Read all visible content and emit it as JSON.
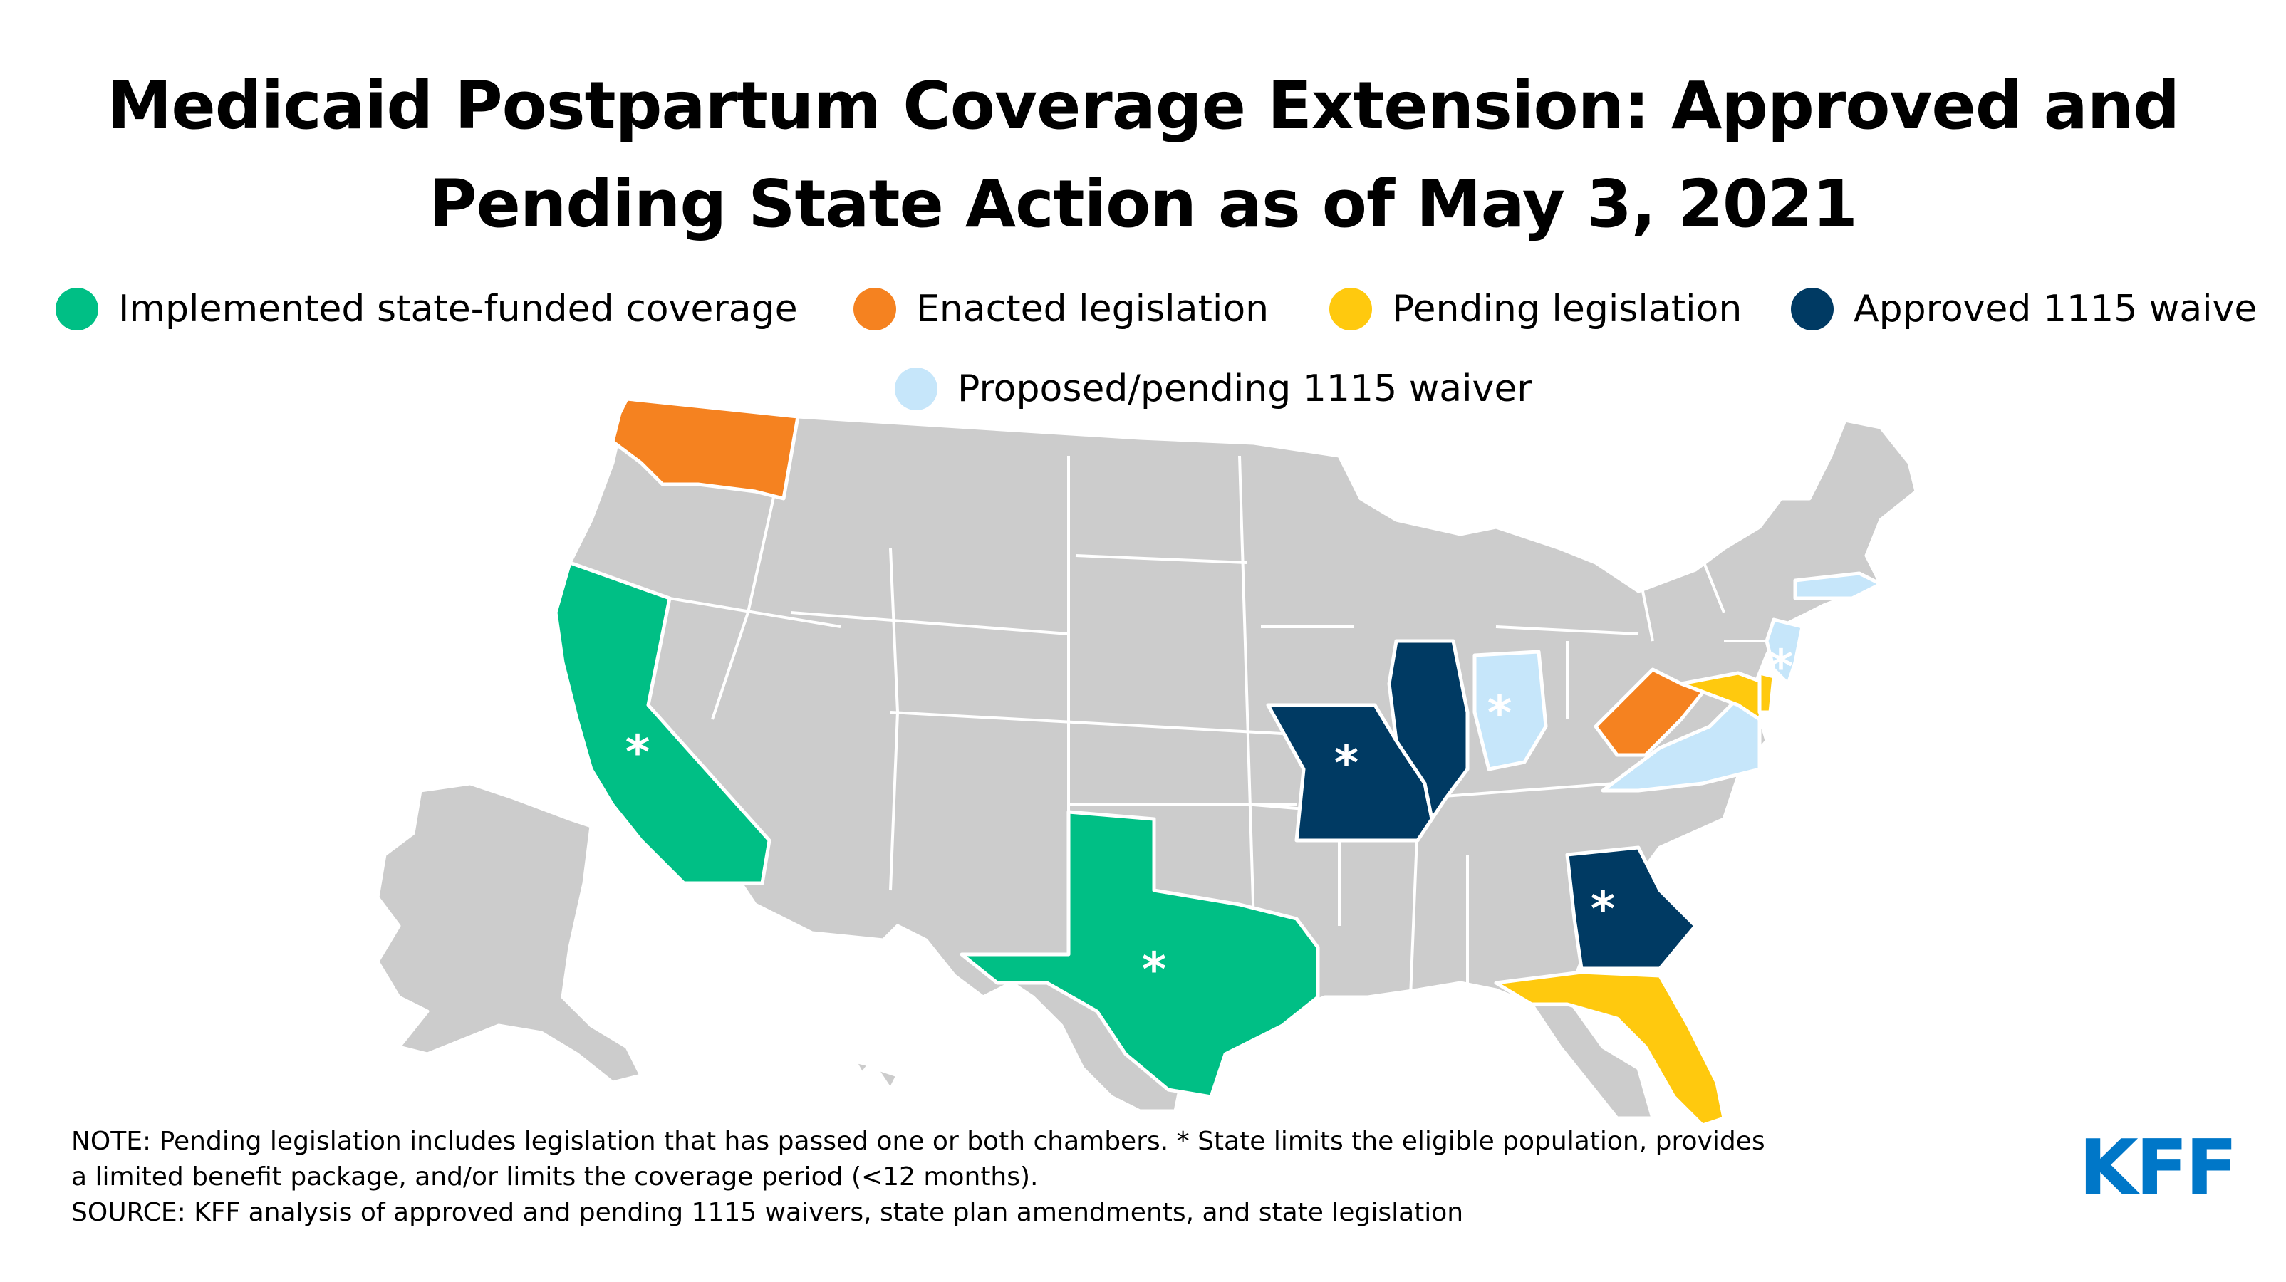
{
  "title": {
    "line1": "Medicaid Postpartum Coverage Extension: Approved and",
    "line2": "Pending State Action as of May 3, 2021"
  },
  "legend": [
    {
      "label": "Implemented state-funded coverage",
      "color": "#00BF85"
    },
    {
      "label": "Enacted legislation",
      "color": "#F58220"
    },
    {
      "label": "Pending legislation",
      "color": "#FFC90E"
    },
    {
      "label": "Approved 1115 waive",
      "color": "#003A63"
    },
    {
      "label": "Proposed/pending 1115 waiver",
      "color": "#C6E6FA"
    }
  ],
  "colors": {
    "no_action": "#CCCCCC",
    "implemented": "#00BF85",
    "enacted": "#F58220",
    "pending": "#FFC90E",
    "approved_waiver": "#003A63",
    "proposed_waiver": "#C6E6FA"
  },
  "map": {
    "star_symbol": "*",
    "states": [
      {
        "name": "Washington",
        "status": "enacted",
        "limited": false
      },
      {
        "name": "California",
        "status": "implemented",
        "limited": true
      },
      {
        "name": "Texas",
        "status": "implemented",
        "limited": true
      },
      {
        "name": "Missouri",
        "status": "approved_waiver",
        "limited": true
      },
      {
        "name": "Illinois",
        "status": "approved_waiver",
        "limited": false
      },
      {
        "name": "Georgia",
        "status": "approved_waiver",
        "limited": true
      },
      {
        "name": "Indiana",
        "status": "proposed_waiver",
        "limited": true
      },
      {
        "name": "Virginia",
        "status": "proposed_waiver",
        "limited": false
      },
      {
        "name": "Massachusetts",
        "status": "proposed_waiver",
        "limited": false
      },
      {
        "name": "New Jersey",
        "status": "proposed_waiver",
        "limited": true
      },
      {
        "name": "West Virginia",
        "status": "enacted",
        "limited": false
      },
      {
        "name": "Maryland",
        "status": "pending",
        "limited": false
      },
      {
        "name": "Delaware",
        "status": "pending",
        "limited": false
      },
      {
        "name": "Florida",
        "status": "pending",
        "limited": false
      }
    ]
  },
  "notes": {
    "note_line1": "NOTE: Pending legislation includes legislation that has passed one or both chambers. * State limits the eligible population, provides",
    "note_line2": "a limited benefit package, and/or limits the coverage period (<12 months).",
    "source": "SOURCE: KFF analysis of approved and pending 1115 waivers, state plan amendments, and state legislation"
  },
  "logo": "KFF",
  "logo_color": "#0077C8"
}
